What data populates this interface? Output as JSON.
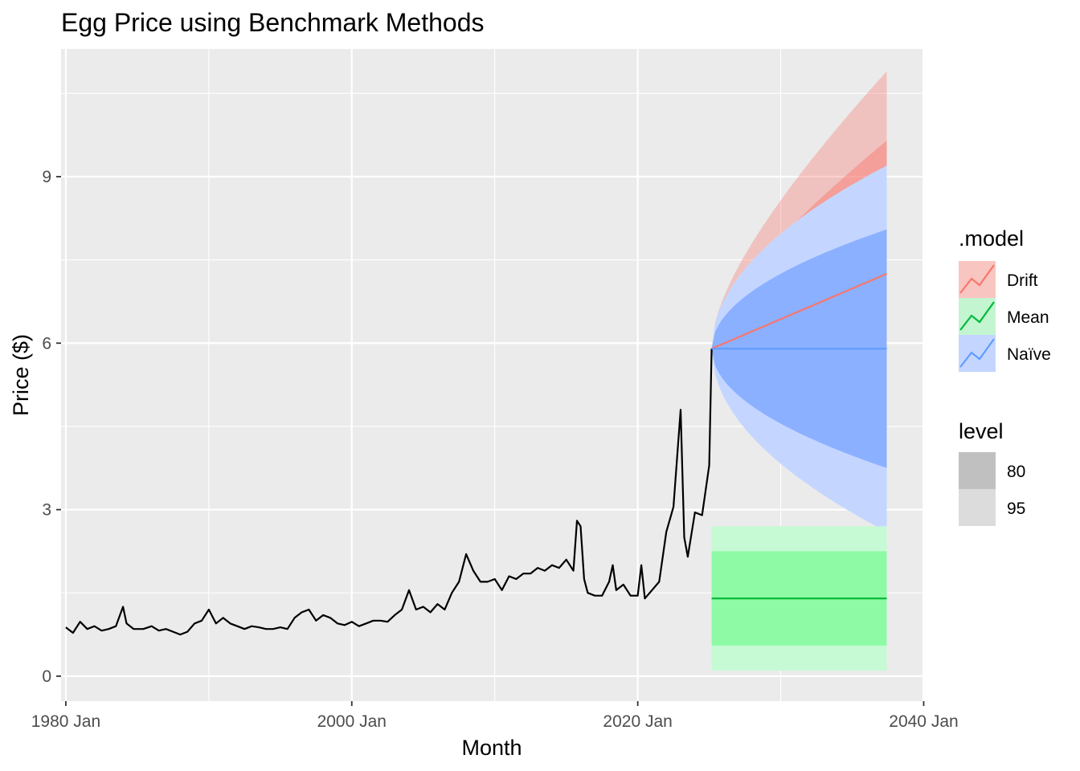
{
  "chart_data": {
    "type": "line",
    "title": "Egg Price using Benchmark Methods",
    "xlabel": "Month",
    "ylabel": "Price ($)",
    "x_range": [
      "1979-09",
      "2039-12"
    ],
    "ylim": [
      -0.45,
      11.3
    ],
    "x_ticks": [
      {
        "date": "1980-01",
        "label": "1980 Jan"
      },
      {
        "date": "2000-01",
        "label": "2000 Jan"
      },
      {
        "date": "2020-01",
        "label": "2020 Jan"
      },
      {
        "date": "2040-01",
        "label": "2040 Jan"
      }
    ],
    "y_ticks": [
      0,
      3,
      6,
      9
    ],
    "grid": true,
    "legend_position": "right",
    "history": {
      "x": [
        "1980-01",
        "1980-07",
        "1981-01",
        "1981-07",
        "1982-01",
        "1982-07",
        "1983-01",
        "1983-07",
        "1984-01",
        "1984-04",
        "1984-10",
        "1985-06",
        "1986-01",
        "1986-07",
        "1987-01",
        "1987-07",
        "1988-01",
        "1988-07",
        "1989-01",
        "1989-07",
        "1990-01",
        "1990-07",
        "1991-01",
        "1991-07",
        "1992-01",
        "1992-07",
        "1993-01",
        "1993-07",
        "1994-01",
        "1994-07",
        "1995-01",
        "1995-07",
        "1996-01",
        "1996-07",
        "1997-01",
        "1997-07",
        "1998-01",
        "1998-07",
        "1999-01",
        "1999-07",
        "2000-01",
        "2000-07",
        "2001-01",
        "2001-07",
        "2002-01",
        "2002-07",
        "2003-01",
        "2003-07",
        "2004-01",
        "2004-07",
        "2005-01",
        "2005-07",
        "2006-01",
        "2006-07",
        "2007-01",
        "2007-07",
        "2008-01",
        "2008-07",
        "2009-01",
        "2009-07",
        "2010-01",
        "2010-07",
        "2011-01",
        "2011-07",
        "2012-01",
        "2012-07",
        "2013-01",
        "2013-07",
        "2014-01",
        "2014-07",
        "2015-01",
        "2015-07",
        "2015-10",
        "2016-01",
        "2016-04",
        "2016-07",
        "2017-01",
        "2017-07",
        "2018-01",
        "2018-04",
        "2018-07",
        "2019-01",
        "2019-07",
        "2020-01",
        "2020-04",
        "2020-07",
        "2021-01",
        "2021-07",
        "2022-01",
        "2022-07",
        "2023-01",
        "2023-04",
        "2023-07",
        "2024-01",
        "2024-07",
        "2025-01",
        "2025-03"
      ],
      "y": [
        0.88,
        0.78,
        0.98,
        0.85,
        0.9,
        0.82,
        0.85,
        0.9,
        1.25,
        0.95,
        0.85,
        0.85,
        0.9,
        0.82,
        0.85,
        0.8,
        0.75,
        0.8,
        0.95,
        1.0,
        1.2,
        0.95,
        1.05,
        0.95,
        0.9,
        0.85,
        0.9,
        0.88,
        0.85,
        0.85,
        0.88,
        0.85,
        1.05,
        1.15,
        1.2,
        1.0,
        1.1,
        1.05,
        0.95,
        0.92,
        0.98,
        0.9,
        0.95,
        1.0,
        1.0,
        0.98,
        1.1,
        1.2,
        1.55,
        1.2,
        1.25,
        1.15,
        1.3,
        1.2,
        1.5,
        1.7,
        2.2,
        1.9,
        1.7,
        1.7,
        1.75,
        1.55,
        1.8,
        1.75,
        1.85,
        1.85,
        1.95,
        1.9,
        2.0,
        1.95,
        2.1,
        1.9,
        2.8,
        2.7,
        1.75,
        1.5,
        1.45,
        1.45,
        1.7,
        2.0,
        1.55,
        1.65,
        1.45,
        1.45,
        2.0,
        1.4,
        1.55,
        1.7,
        2.6,
        3.05,
        4.8,
        2.5,
        2.15,
        2.95,
        2.9,
        3.8,
        5.9
      ]
    },
    "forecast": {
      "start": "2025-03",
      "end": "2037-06",
      "series": [
        {
          "name": "Drift",
          "color": "#f8766d",
          "point": [
            5.9,
            7.25
          ],
          "lo80": [
            5.9,
            4.85
          ],
          "hi80": [
            5.9,
            9.65
          ],
          "lo95": [
            5.9,
            4.2
          ],
          "hi95": [
            5.9,
            10.9
          ]
        },
        {
          "name": "Mean",
          "color": "#00ba38",
          "point": [
            1.4,
            1.4
          ],
          "lo80": [
            0.55,
            0.55
          ],
          "hi80": [
            2.25,
            2.25
          ],
          "lo95": [
            0.1,
            0.1
          ],
          "hi95": [
            2.7,
            2.7
          ]
        },
        {
          "name": "Naïve",
          "color": "#619cff",
          "point": [
            5.9,
            5.9
          ],
          "lo80": [
            5.9,
            3.75
          ],
          "hi80": [
            5.9,
            8.05
          ],
          "lo95": [
            5.9,
            2.6
          ],
          "hi95": [
            5.9,
            9.2
          ]
        }
      ]
    },
    "legend_model": {
      "title": ".model",
      "items": [
        {
          "label": "Drift",
          "color": "#f8766d",
          "fill": "#f8c5c1"
        },
        {
          "label": "Mean",
          "color": "#00ba38",
          "fill": "#c3f5d1"
        },
        {
          "label": "Naïve",
          "color": "#619cff",
          "fill": "#c4d6ff"
        }
      ]
    },
    "legend_level": {
      "title": "level",
      "items": [
        {
          "label": "80",
          "fill": "#c0c0c0"
        },
        {
          "label": "95",
          "fill": "#dcdcdc"
        }
      ]
    }
  }
}
